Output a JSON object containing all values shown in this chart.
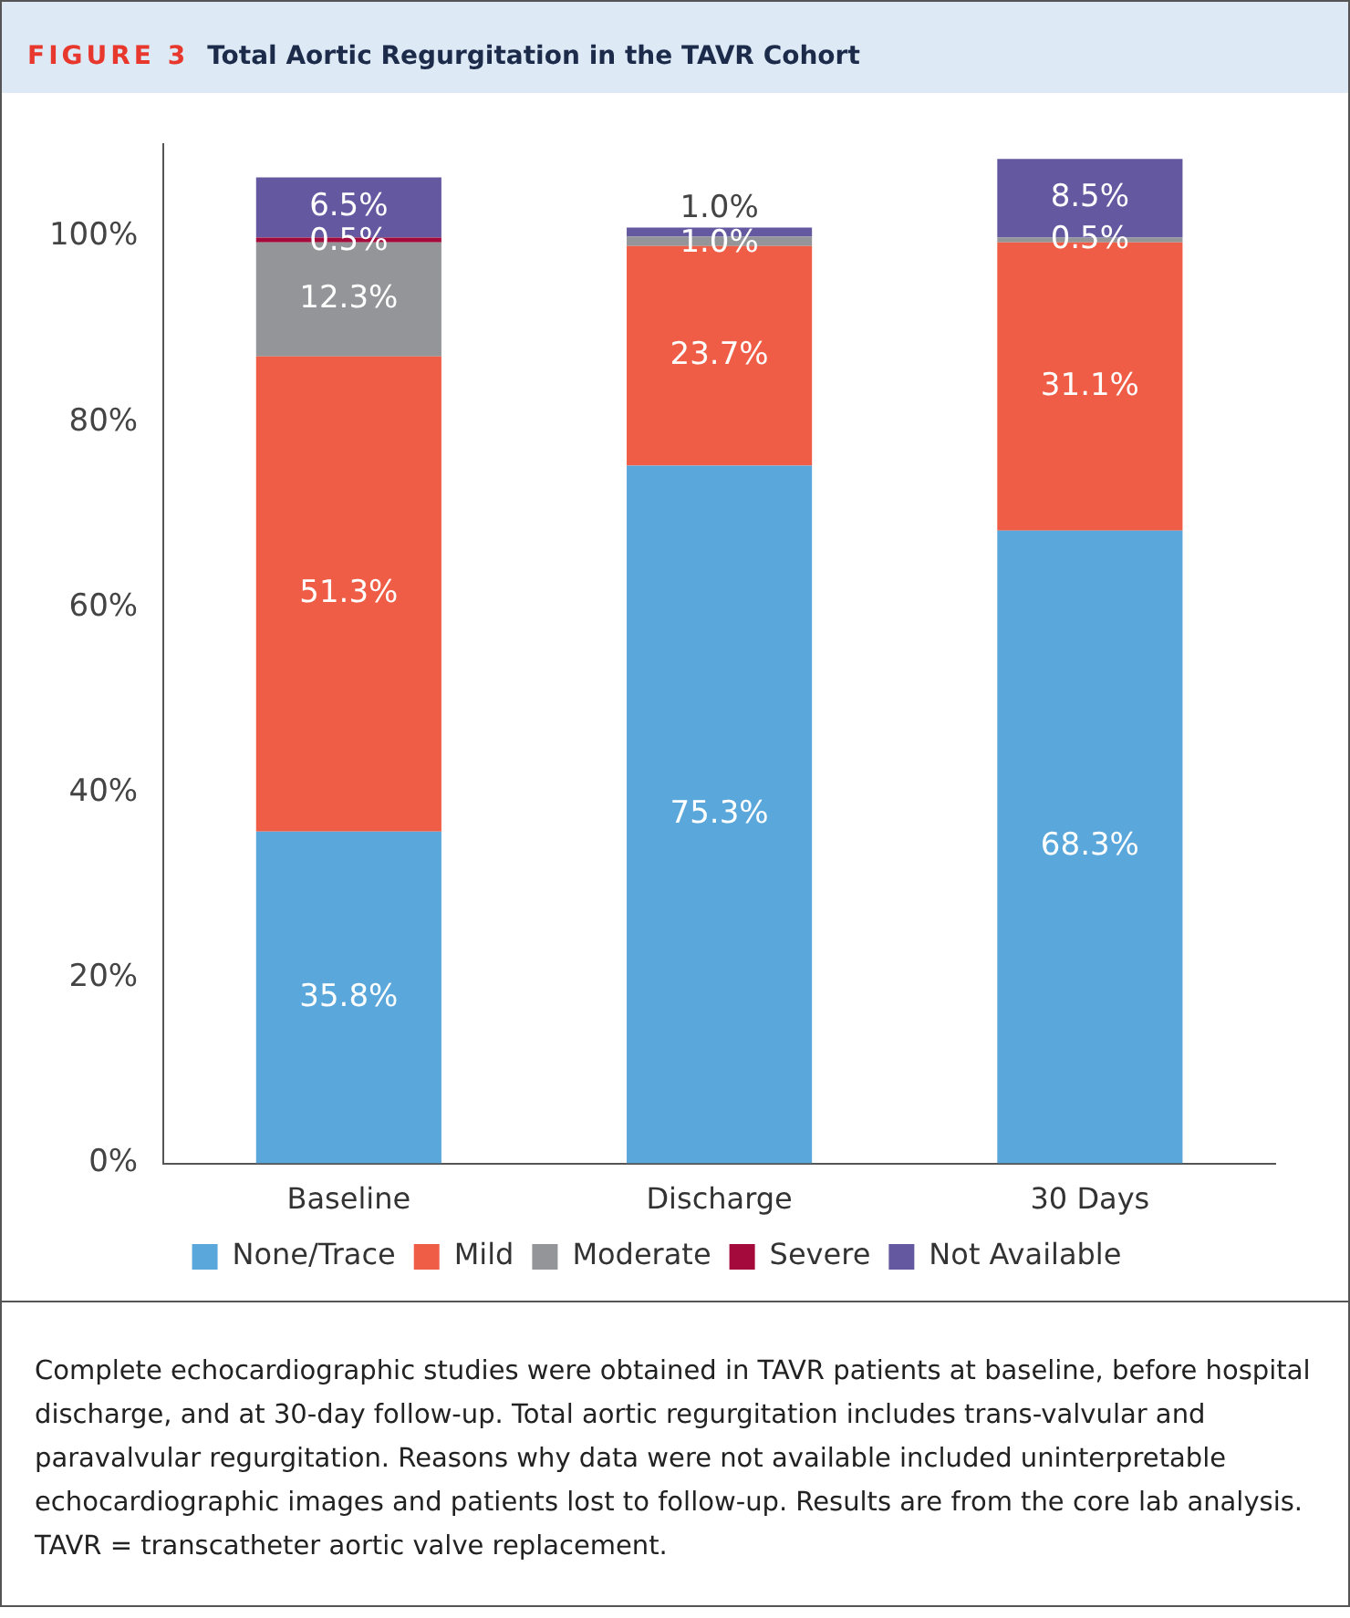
{
  "chart_data": {
    "type": "bar",
    "title": "Total Aortic Regurgitation in the TAVR Cohort",
    "subtitle": "FIGURE 3",
    "categories": [
      "Baseline",
      "Discharge",
      "30 Days"
    ],
    "series": [
      {
        "name": "None/Trace",
        "color": "#5aa7db",
        "values": [
          35.8,
          75.3,
          68.3
        ],
        "value_labels": [
          "35.8%",
          "75.3%",
          "68.3%"
        ]
      },
      {
        "name": "Mild",
        "color": "#ef5d46",
        "values": [
          51.3,
          23.7,
          31.1
        ],
        "value_labels": [
          "51.3%",
          "23.7%",
          "31.1%"
        ]
      },
      {
        "name": "Moderate",
        "color": "#939598",
        "values": [
          12.3,
          1.0,
          0.5
        ],
        "value_labels": [
          "12.3%",
          "1.0%",
          "0.5%"
        ]
      },
      {
        "name": "Severe",
        "color": "#a50a3c",
        "values": [
          0.5,
          null,
          null
        ],
        "value_labels": [
          "0.5%",
          null,
          null
        ]
      },
      {
        "name": "Not Available",
        "color": "#6459a0",
        "values": [
          6.5,
          1.0,
          8.5
        ],
        "value_labels": [
          "6.5%",
          "1.0%",
          "8.5%"
        ]
      }
    ],
    "stacked": true,
    "ylim": [
      0,
      110
    ],
    "yticks": [
      {
        "value": 0,
        "label": "0%"
      },
      {
        "value": 20,
        "label": "20%"
      },
      {
        "value": 40,
        "label": "40%"
      },
      {
        "value": 60,
        "label": "60%"
      },
      {
        "value": 80,
        "label": "80%"
      },
      {
        "value": 100,
        "label": "100%"
      }
    ],
    "grid": false,
    "legend": "bottom",
    "annotations": [
      "Complete echocardiographic studies were obtained in TAVR patients at baseline, before hospital discharge, and at 30-day follow-up. Total aortic regurgitation includes trans-valvular and paravalvular regurgitation. Reasons why data were not available included uninterpretable echocardiographic images and patients lost to follow-up. Results are from the core lab analysis. TAVR = transcatheter aortic valve replacement."
    ]
  }
}
